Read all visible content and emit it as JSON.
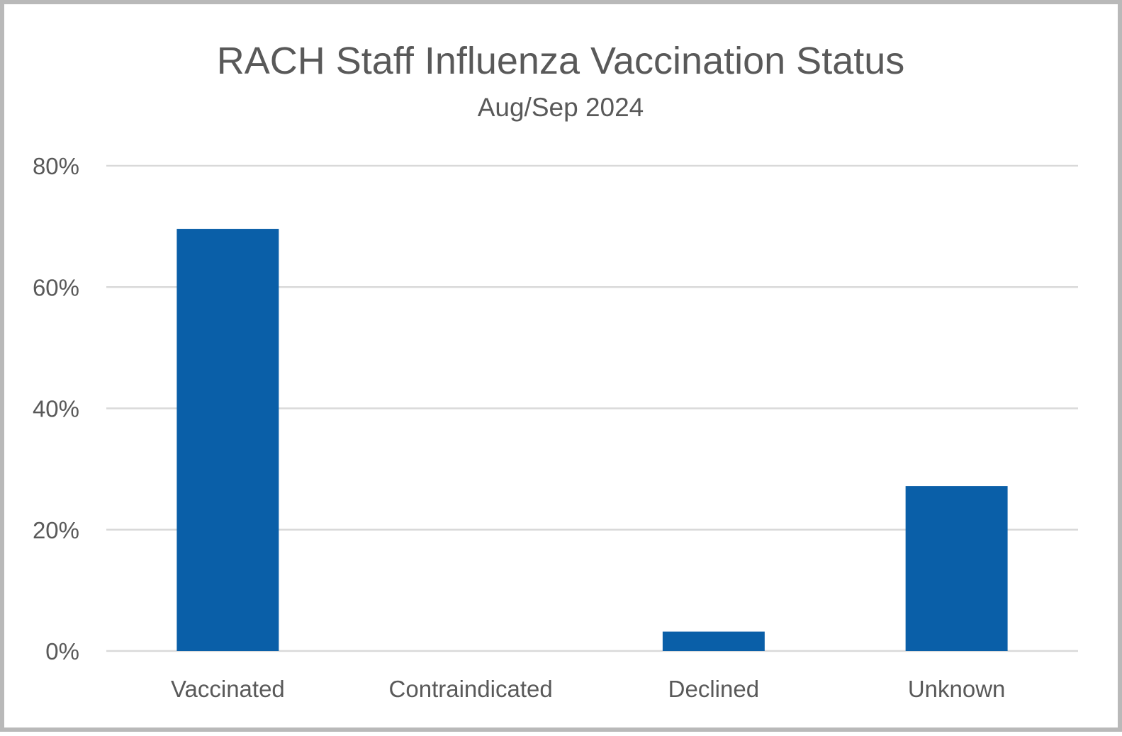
{
  "chart_data": {
    "type": "bar",
    "title": "RACH Staff Influenza Vaccination Status",
    "subtitle": "Aug/Sep 2024",
    "categories": [
      "Vaccinated",
      "Contraindicated",
      "Declined",
      "Unknown"
    ],
    "values": [
      69.6,
      0,
      3.2,
      27.2
    ],
    "value_unit": "%",
    "ylim": [
      0,
      80
    ],
    "yticks": [
      0,
      20,
      40,
      60,
      80
    ],
    "ytick_labels": [
      "0%",
      "20%",
      "40%",
      "60%",
      "80%"
    ],
    "xlabel": "",
    "ylabel": "",
    "grid": true,
    "legend": "none",
    "colors": {
      "bar": "#0a5fa8",
      "grid": "#d9d9d9",
      "text": "#595959",
      "border": "#b9b9b9"
    }
  }
}
